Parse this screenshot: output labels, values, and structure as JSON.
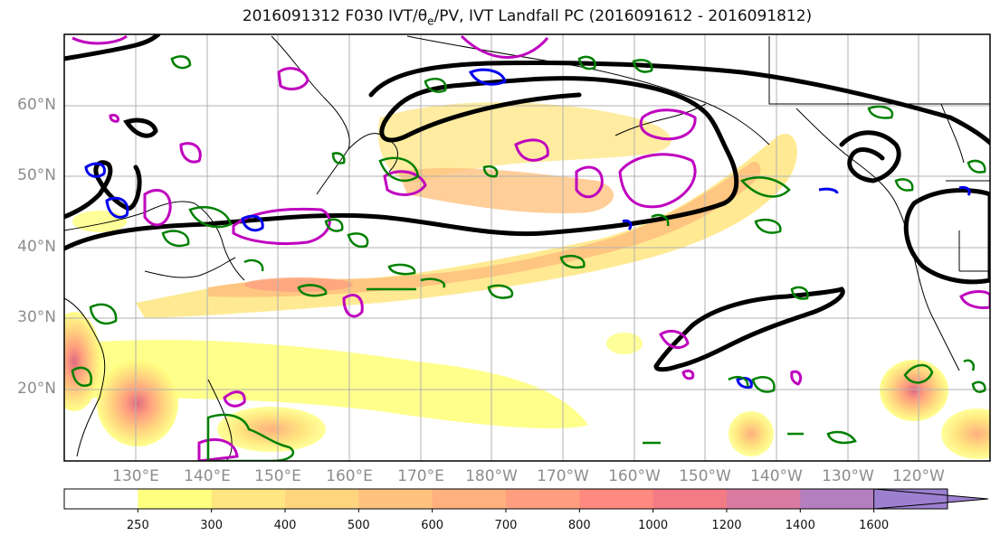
{
  "title": {
    "pre": "2016091312 F030 IVT/θ",
    "sub": "e",
    "post": "/PV, IVT Landfall PC (2016091612 - 2016091812)"
  },
  "lat_labels": [
    "60°N",
    "50°N",
    "40°N",
    "30°N",
    "20°N"
  ],
  "lon_labels": [
    "130°E",
    "140°E",
    "150°E",
    "160°E",
    "170°E",
    "180°W",
    "170°W",
    "160°W",
    "150°W",
    "140°W",
    "130°W",
    "120°W"
  ],
  "colorbar": {
    "ticks": [
      "250",
      "300",
      "400",
      "500",
      "600",
      "700",
      "800",
      "1000",
      "1200",
      "1400",
      "1600"
    ],
    "colors": [
      "#ffffff",
      "#ffff80",
      "#ffe680",
      "#ffd47f",
      "#ffc27f",
      "#ffb07f",
      "#ff9f7f",
      "#ff8a7f",
      "#f27b85",
      "#d97aa0",
      "#b47fbf",
      "#9d7fcf"
    ]
  },
  "contour_colors": {
    "theta_e": "#000000",
    "pv_positive": "#bf00bf",
    "pv_negative": "#0000ee",
    "ivt_green": "#008000"
  }
}
